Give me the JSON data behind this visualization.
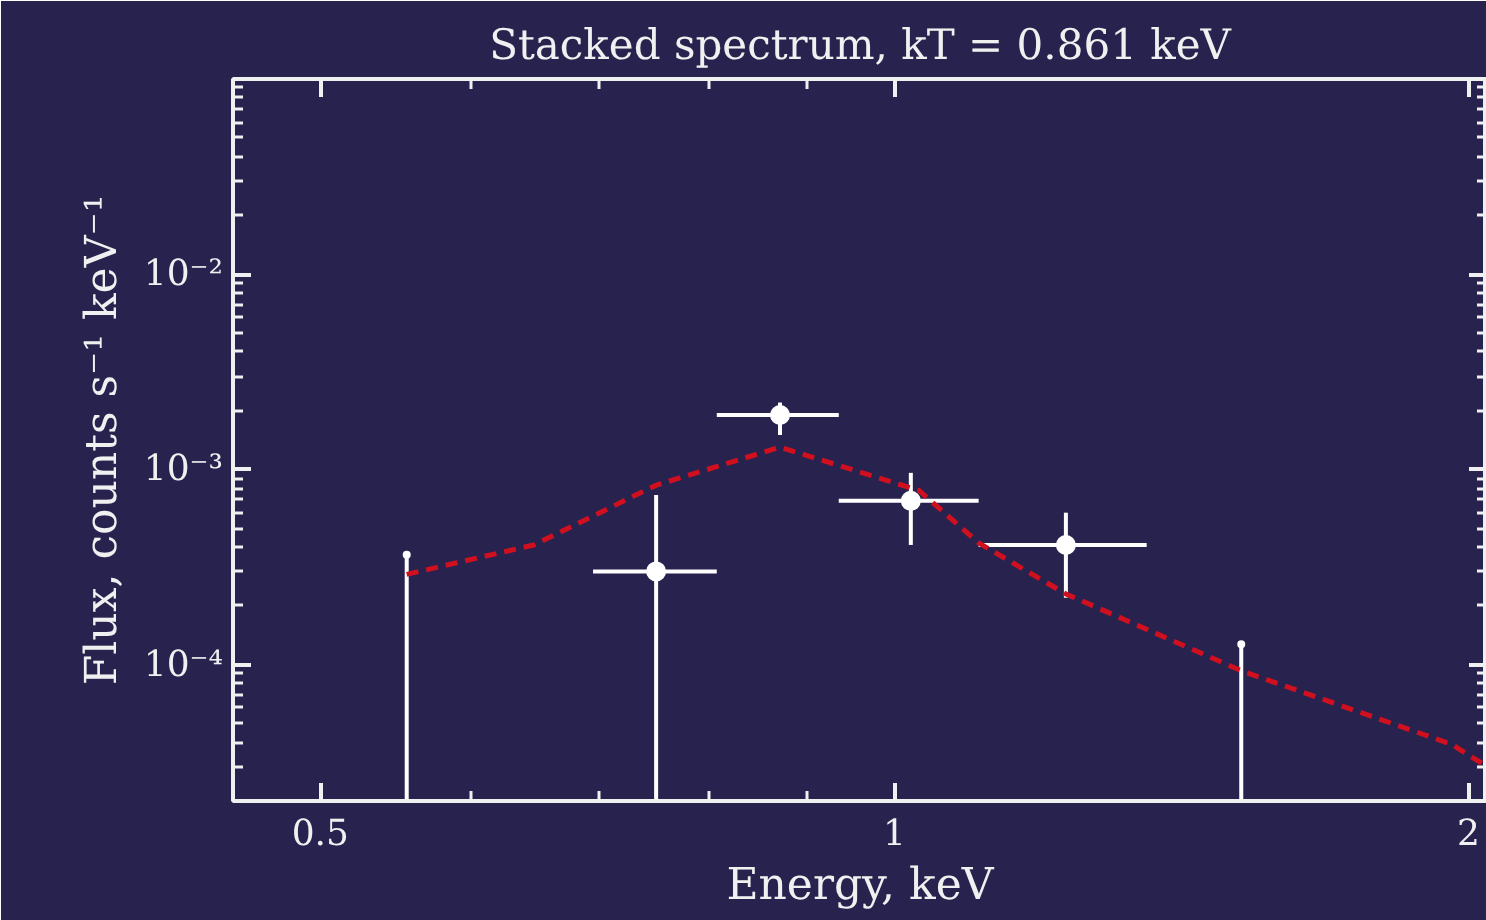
{
  "chart_data": {
    "type": "scatter",
    "title": "Stacked spectrum, kT = 0.861 keV",
    "xlabel": "Energy, keV",
    "ylabel": "Flux, counts s⁻¹ keV⁻¹",
    "log": "xy",
    "xlim": [
      0.45,
      2.045
    ],
    "ylim": [
      2e-05,
      0.1
    ],
    "xticks": [
      0.5,
      1,
      2
    ],
    "yticks": [
      {
        "value": 0.0001,
        "label": "10⁻⁴"
      },
      {
        "value": 0.001,
        "label": "10⁻³"
      },
      {
        "value": 0.01,
        "label": "10⁻²"
      }
    ],
    "grid": false,
    "series": [
      {
        "type": "scatter",
        "marker": "circle",
        "color": "#ffffff",
        "x": [
          0.75,
          0.871,
          1.02,
          1.23
        ],
        "values": [
          0.0003,
          0.0019,
          0.00069,
          0.00041
        ],
        "errors": [
          [
            2e-05,
            0.00074
          ],
          [
            0.0015,
            0.0022
          ],
          [
            0.00041,
            0.00096
          ],
          [
            0.00022,
            0.0006
          ]
        ],
        "xerrors": [
          [
            0.695,
            0.807
          ],
          [
            0.807,
            0.935
          ],
          [
            0.935,
            1.107
          ],
          [
            1.107,
            1.356
          ]
        ]
      },
      {
        "marker": "circle",
        "color": "#ffffff",
        "x": [
          0.555,
          1.52
        ],
        "values": [
          0.000365,
          0.000127
        ],
        "errors": [
          [
            2e-05,
            0.000365
          ],
          [
            2e-05,
            0.000127
          ]
        ]
      },
      {
        "type": "line",
        "marker": "none",
        "line_style": "dashed",
        "color": "#d0101e",
        "x": [
          0.555,
          0.647,
          0.75,
          0.871,
          1.03,
          1.107,
          1.23,
          1.52,
          1.96,
          2.045
        ],
        "values": [
          0.00029,
          0.00041,
          0.00083,
          0.0013,
          0.00078,
          0.00042,
          0.00023,
          9.3e-05,
          3.9e-05,
          3e-05
        ]
      }
    ]
  }
}
